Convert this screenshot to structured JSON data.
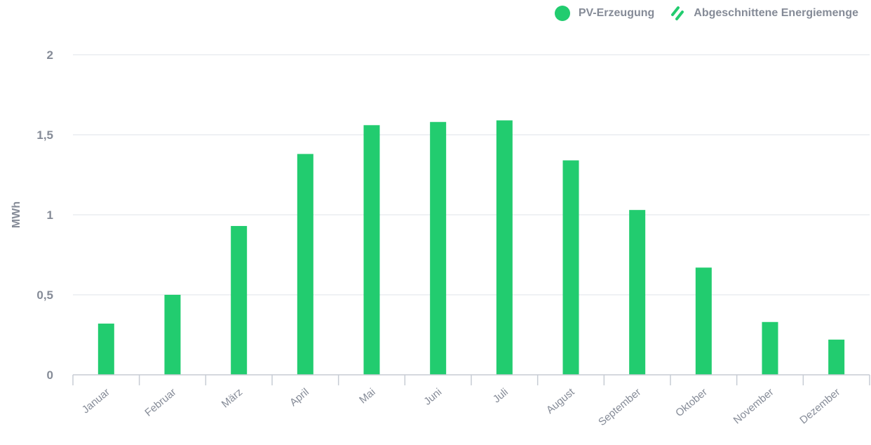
{
  "legend": {
    "items": [
      {
        "label": "PV-Erzeugung",
        "swatch": "dot"
      },
      {
        "label": "Abgeschnittene Energiemenge",
        "swatch": "hatch"
      }
    ]
  },
  "colors": {
    "bar": "#22cc6f",
    "grid": "#dfe3e8",
    "axis": "#c7ccd4",
    "text": "#858b97"
  },
  "chart_data": {
    "type": "bar",
    "ylabel": "MWh",
    "xlabel": "",
    "ylim": [
      0,
      2
    ],
    "yticks": [
      {
        "value": 0,
        "label": "0"
      },
      {
        "value": 0.5,
        "label": "0,5"
      },
      {
        "value": 1,
        "label": "1"
      },
      {
        "value": 1.5,
        "label": "1,5"
      },
      {
        "value": 2,
        "label": "2"
      }
    ],
    "categories": [
      "Januar",
      "Februar",
      "März",
      "April",
      "Mai",
      "Juni",
      "Juli",
      "August",
      "September",
      "Oktober",
      "November",
      "Dezember"
    ],
    "series": [
      {
        "name": "PV-Erzeugung",
        "values": [
          0.32,
          0.5,
          0.93,
          1.38,
          1.56,
          1.58,
          1.59,
          1.34,
          1.03,
          0.67,
          0.33,
          0.22
        ]
      },
      {
        "name": "Abgeschnittene Energiemenge",
        "values": [
          0,
          0,
          0,
          0,
          0,
          0,
          0,
          0,
          0,
          0,
          0,
          0
        ]
      }
    ],
    "grid": true,
    "legend_position": "top-right"
  }
}
